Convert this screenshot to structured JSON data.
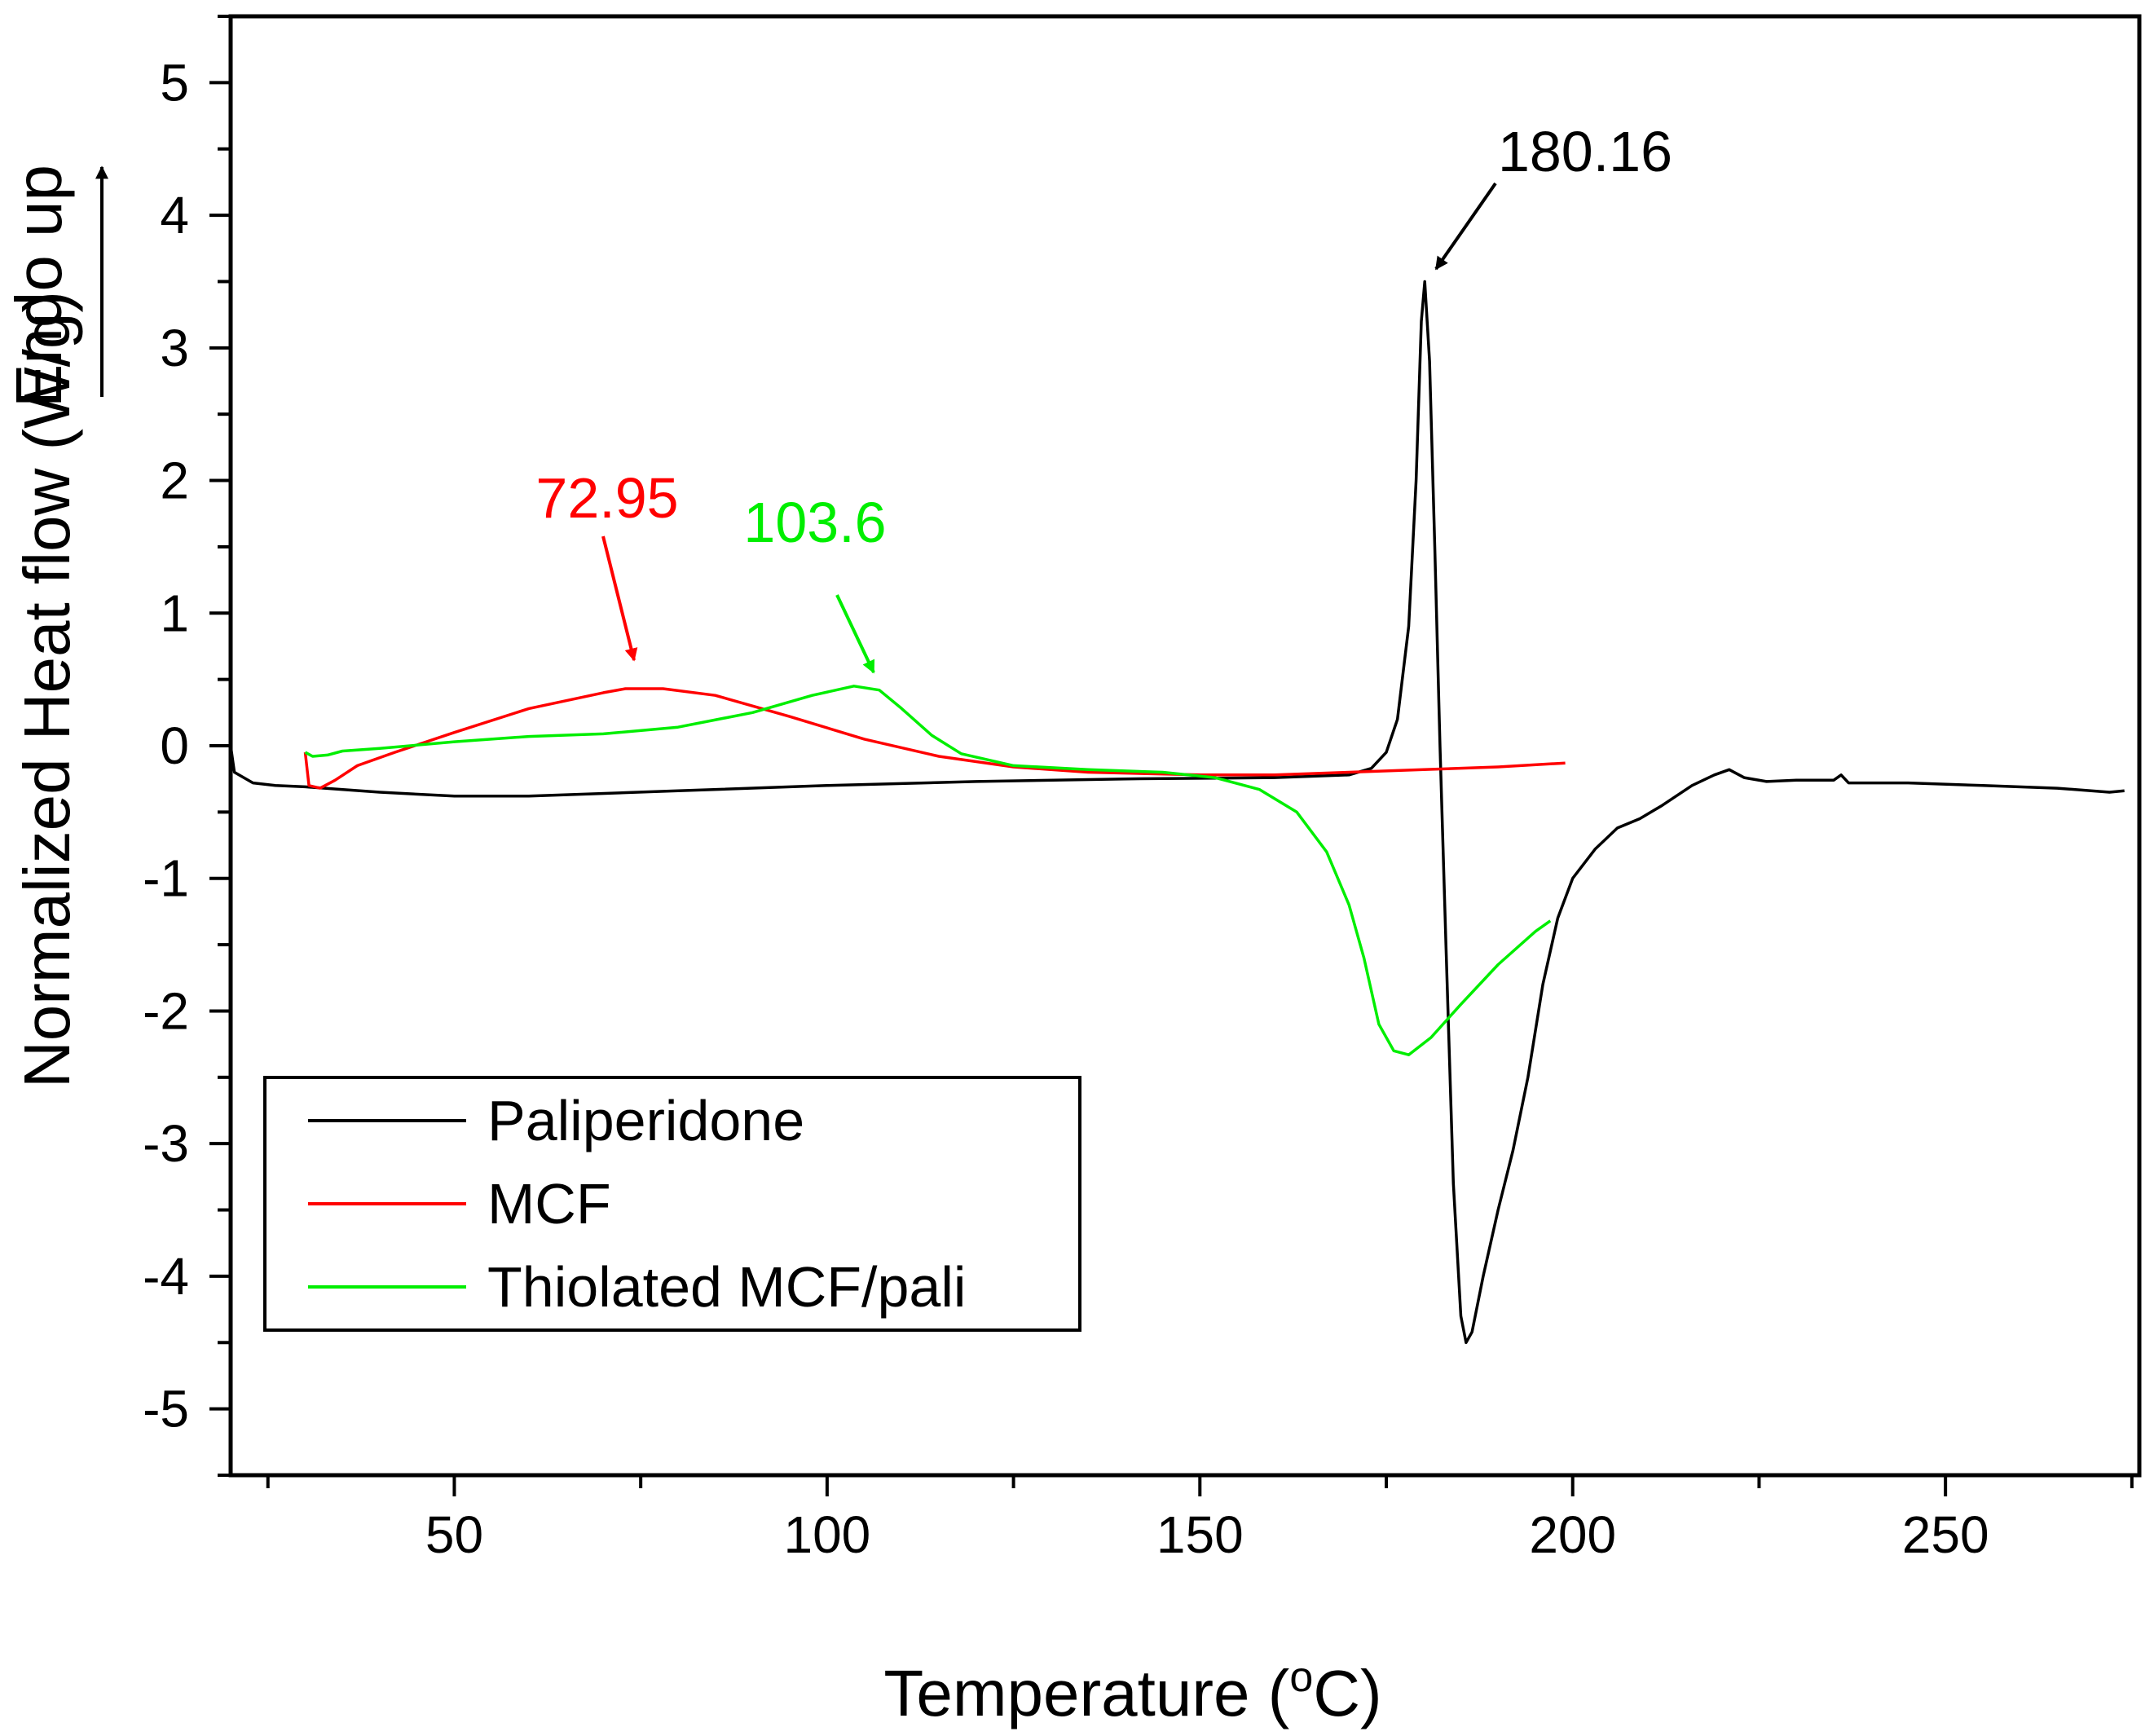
{
  "chart_data": {
    "type": "line",
    "title": "",
    "xlabel": "Temperature (°C)",
    "xlabel_parts": {
      "main": "Temperature (",
      "superscript": "o",
      "tail": "C)"
    },
    "ylabel": "Normalized Heat flow (W/g)",
    "ylabel_note": "Endo up",
    "xlim": [
      20,
      276
    ],
    "ylim": [
      -5.5,
      5.5
    ],
    "xticks": [
      50,
      100,
      150,
      200,
      250
    ],
    "xtick_labels": [
      "50",
      "100",
      "150",
      "200",
      "250"
    ],
    "yticks": [
      5,
      4,
      3,
      2,
      1,
      0,
      -1,
      -2,
      -3,
      -4,
      -5
    ],
    "ytick_labels": [
      "5",
      "4",
      "3",
      "2",
      "1",
      "0",
      "-1",
      "-2",
      "-3",
      "-4",
      "-5"
    ],
    "legend_position": "bottom-left",
    "grid": false,
    "series": [
      {
        "name": "Paliperidone",
        "color": "#000000",
        "points": [
          [
            20,
            0
          ],
          [
            20.5,
            -0.2
          ],
          [
            23,
            -0.28
          ],
          [
            26,
            -0.3
          ],
          [
            30,
            -0.31
          ],
          [
            40,
            -0.35
          ],
          [
            50,
            -0.38
          ],
          [
            60,
            -0.38
          ],
          [
            80,
            -0.34
          ],
          [
            100,
            -0.3
          ],
          [
            120,
            -0.27
          ],
          [
            140,
            -0.25
          ],
          [
            160,
            -0.24
          ],
          [
            170,
            -0.22
          ],
          [
            173,
            -0.17
          ],
          [
            175,
            -0.05
          ],
          [
            176.5,
            0.2
          ],
          [
            178,
            0.9
          ],
          [
            179,
            2.0
          ],
          [
            179.7,
            3.2
          ],
          [
            180.16,
            3.5
          ],
          [
            180.8,
            2.9
          ],
          [
            181.5,
            1.5
          ],
          [
            182.2,
            0
          ],
          [
            183,
            -1.5
          ],
          [
            184,
            -3.3
          ],
          [
            185,
            -4.3
          ],
          [
            185.7,
            -4.5
          ],
          [
            186.5,
            -4.42
          ],
          [
            188,
            -4.0
          ],
          [
            190,
            -3.5
          ],
          [
            192,
            -3.05
          ],
          [
            194,
            -2.5
          ],
          [
            196,
            -1.8
          ],
          [
            198,
            -1.3
          ],
          [
            200,
            -1.0
          ],
          [
            203,
            -0.78
          ],
          [
            206,
            -0.62
          ],
          [
            209,
            -0.55
          ],
          [
            212,
            -0.45
          ],
          [
            216,
            -0.3
          ],
          [
            219,
            -0.22
          ],
          [
            221,
            -0.18
          ],
          [
            223,
            -0.24
          ],
          [
            226,
            -0.27
          ],
          [
            230,
            -0.26
          ],
          [
            235,
            -0.26
          ],
          [
            236,
            -0.22
          ],
          [
            237,
            -0.28
          ],
          [
            245,
            -0.28
          ],
          [
            255,
            -0.3
          ],
          [
            265,
            -0.32
          ],
          [
            272,
            -0.35
          ],
          [
            274,
            -0.34
          ]
        ]
      },
      {
        "name": "MCF",
        "color": "#ff0000",
        "points": [
          [
            30,
            -0.05
          ],
          [
            30.5,
            -0.3
          ],
          [
            32,
            -0.32
          ],
          [
            34,
            -0.26
          ],
          [
            37,
            -0.15
          ],
          [
            42,
            -0.05
          ],
          [
            50,
            0.1
          ],
          [
            60,
            0.28
          ],
          [
            70,
            0.4
          ],
          [
            72.95,
            0.43
          ],
          [
            78,
            0.43
          ],
          [
            85,
            0.38
          ],
          [
            95,
            0.22
          ],
          [
            105,
            0.05
          ],
          [
            115,
            -0.08
          ],
          [
            125,
            -0.16
          ],
          [
            135,
            -0.2
          ],
          [
            150,
            -0.22
          ],
          [
            160,
            -0.22
          ],
          [
            170,
            -0.2
          ],
          [
            180,
            -0.18
          ],
          [
            190,
            -0.16
          ],
          [
            199,
            -0.13
          ]
        ]
      },
      {
        "name": "Thiolated MCF/pali",
        "color": "#00ee00",
        "points": [
          [
            30,
            -0.05
          ],
          [
            31,
            -0.08
          ],
          [
            33,
            -0.07
          ],
          [
            35,
            -0.04
          ],
          [
            40,
            -0.02
          ],
          [
            50,
            0.03
          ],
          [
            60,
            0.07
          ],
          [
            70,
            0.09
          ],
          [
            80,
            0.14
          ],
          [
            90,
            0.25
          ],
          [
            98,
            0.38
          ],
          [
            103.6,
            0.45
          ],
          [
            107,
            0.42
          ],
          [
            110,
            0.28
          ],
          [
            114,
            0.08
          ],
          [
            118,
            -0.06
          ],
          [
            125,
            -0.15
          ],
          [
            135,
            -0.18
          ],
          [
            145,
            -0.2
          ],
          [
            152,
            -0.24
          ],
          [
            158,
            -0.33
          ],
          [
            163,
            -0.5
          ],
          [
            167,
            -0.8
          ],
          [
            170,
            -1.2
          ],
          [
            172,
            -1.6
          ],
          [
            174,
            -2.1
          ],
          [
            176,
            -2.3
          ],
          [
            178,
            -2.33
          ],
          [
            181,
            -2.2
          ],
          [
            185,
            -1.95
          ],
          [
            190,
            -1.65
          ],
          [
            195,
            -1.4
          ],
          [
            197,
            -1.32
          ]
        ]
      }
    ],
    "annotations": [
      {
        "text": "180.16",
        "x": 180.16,
        "y": 3.5,
        "color": "#000000",
        "series": "Paliperidone"
      },
      {
        "text": "72.95",
        "x": 72.95,
        "y": 0.43,
        "color": "#ff0000",
        "series": "MCF"
      },
      {
        "text": "103.6",
        "x": 103.6,
        "y": 0.45,
        "color": "#00ee00",
        "series": "Thiolated MCF/pali"
      }
    ]
  }
}
